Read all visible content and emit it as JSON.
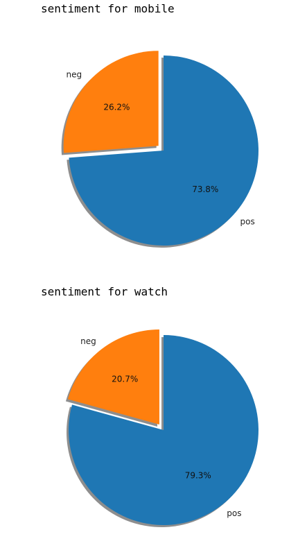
{
  "chart_data": [
    {
      "type": "pie",
      "title": "sentiment for mobile",
      "slices": [
        {
          "label": "neg",
          "value": 26.2,
          "pct_label": "26.2%",
          "color": "#ff7f0e",
          "explode": true
        },
        {
          "label": "pos",
          "value": 73.8,
          "pct_label": "73.8%",
          "color": "#1f77b4",
          "explode": false
        }
      ],
      "shadow": true,
      "legend": "none"
    },
    {
      "type": "pie",
      "title": "sentiment for watch",
      "slices": [
        {
          "label": "neg",
          "value": 20.7,
          "pct_label": "20.7%",
          "color": "#ff7f0e",
          "explode": true
        },
        {
          "label": "pos",
          "value": 79.3,
          "pct_label": "79.3%",
          "color": "#1f77b4",
          "explode": false
        }
      ],
      "shadow": true,
      "legend": "none"
    }
  ]
}
